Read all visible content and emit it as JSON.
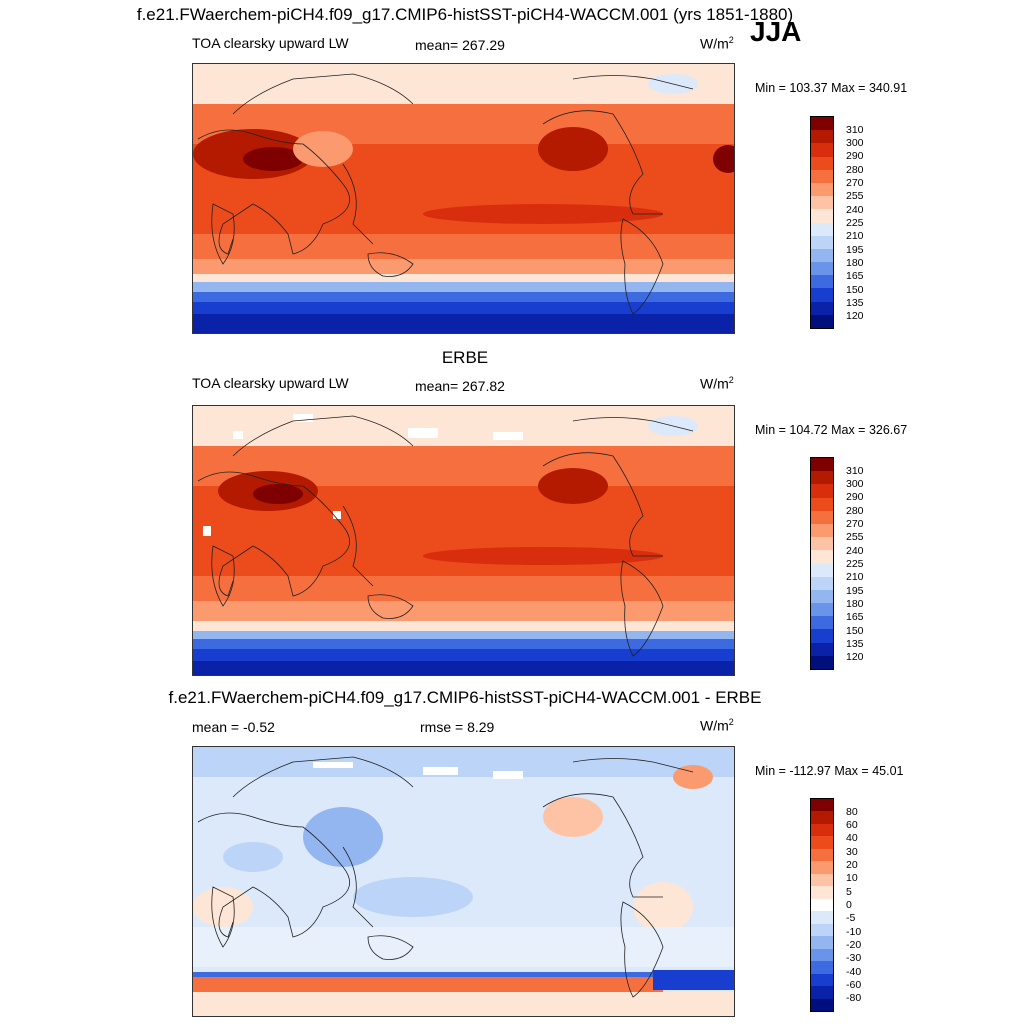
{
  "main_title": "f.e21.FWaerchem-piCH4.f09_g17.CMIP6-histSST-piCH4-WACCM.001 (yrs 1851-1880)",
  "season": "JJA",
  "panels": [
    {
      "title": "",
      "left_label": "TOA clearsky upward LW",
      "center_label": "mean= 267.29",
      "units": "W/m",
      "units_sup": "2",
      "minmax": "Min = 103.37 Max = 340.91",
      "colorbar_labels": [
        "310",
        "300",
        "290",
        "280",
        "270",
        "255",
        "240",
        "225",
        "210",
        "195",
        "180",
        "165",
        "150",
        "135",
        "120"
      ]
    },
    {
      "title": "ERBE",
      "left_label": "TOA clearsky upward LW",
      "center_label": "mean= 267.82",
      "units": "W/m",
      "units_sup": "2",
      "minmax": "Min = 104.72 Max = 326.67",
      "colorbar_labels": [
        "310",
        "300",
        "290",
        "280",
        "270",
        "255",
        "240",
        "225",
        "210",
        "195",
        "180",
        "165",
        "150",
        "135",
        "120"
      ]
    },
    {
      "title": "f.e21.FWaerchem-piCH4.f09_g17.CMIP6-histSST-piCH4-WACCM.001 - ERBE",
      "left_label": "mean =  -0.52",
      "center_label": "rmse =   8.29",
      "units": "W/m",
      "units_sup": "2",
      "minmax": "Min = -112.97 Max =  45.01",
      "colorbar_labels": [
        "80",
        "60",
        "40",
        "30",
        "20",
        "10",
        "5",
        "0",
        "-5",
        "-10",
        "-20",
        "-30",
        "-40",
        "-60",
        "-80"
      ]
    }
  ],
  "colors": {
    "abs_scale": [
      "#7f0000",
      "#b31a00",
      "#d92e0e",
      "#ec4b1c",
      "#f5703e",
      "#fb9a6e",
      "#fdc3a4",
      "#fde6d6",
      "#dce9fb",
      "#bcd4f7",
      "#93b6f1",
      "#6a93ea",
      "#3d6ae0",
      "#173ecf",
      "#0a22a8",
      "#000f7c"
    ],
    "diff_scale": [
      "#7f0000",
      "#b31a00",
      "#d92e0e",
      "#ec4b1c",
      "#f5703e",
      "#fb9a6e",
      "#fdc3a4",
      "#fde6d6",
      "#ffffff",
      "#dce9fb",
      "#bcd4f7",
      "#93b6f1",
      "#6a93ea",
      "#3d6ae0",
      "#173ecf",
      "#0a22a8",
      "#000f7c"
    ]
  }
}
